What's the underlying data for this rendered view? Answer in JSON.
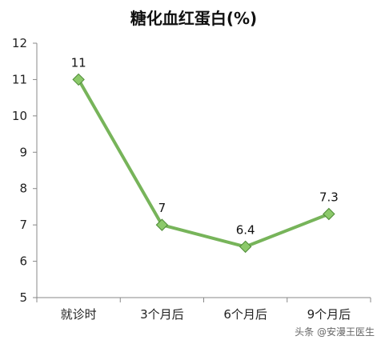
{
  "chart_data": {
    "type": "line",
    "title": "糖化血红蛋白(%)",
    "categories": [
      "就诊时",
      "3个月后",
      "6个月后",
      "9个月后"
    ],
    "series": [
      {
        "values": [
          11,
          7,
          6.4,
          7.3
        ],
        "data_labels": [
          "11",
          "7",
          "6.4",
          "7.3"
        ]
      }
    ],
    "ylim": [
      5,
      12
    ],
    "yticks": [
      "5",
      "6",
      "7",
      "8",
      "9",
      "10",
      "11",
      "12"
    ],
    "grid": false,
    "legend": "none",
    "colors": {
      "line": "#77b45a",
      "marker": "#8cc96a",
      "marker_edge": "#4d8a36",
      "axis": "#888888"
    }
  },
  "watermark": "头条 @安漫王医生"
}
